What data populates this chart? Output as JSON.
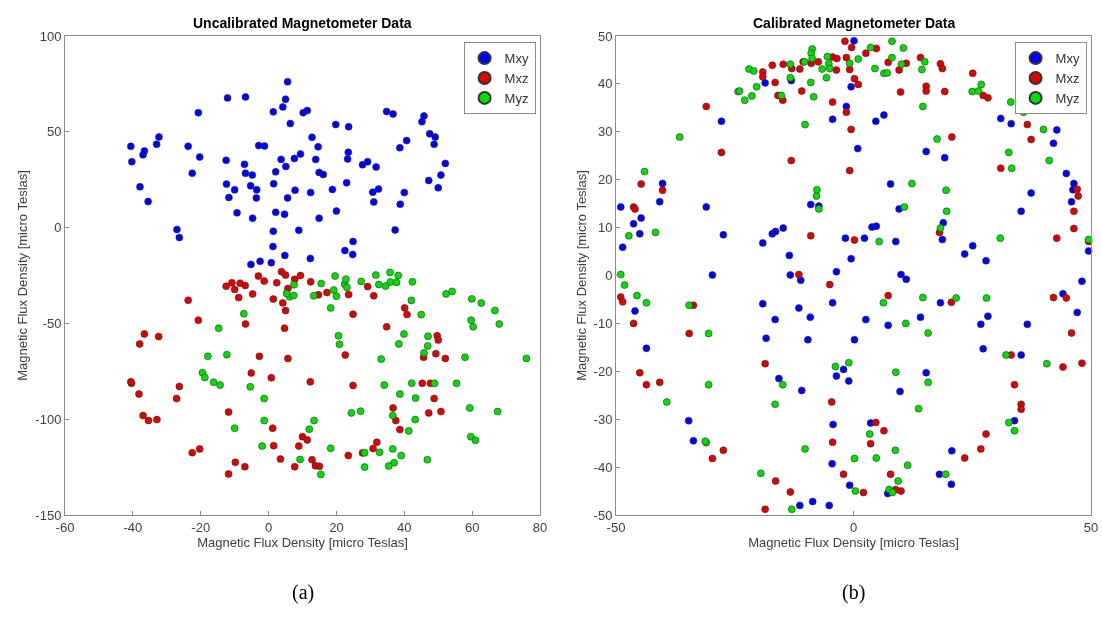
{
  "chart_data": [
    {
      "type": "scatter",
      "title": "Uncalibrated Magnetometer Data",
      "xlabel": "Magnetic Flux Density [micro Teslas]",
      "ylabel": "Magnetic Flux Density [micro Teslas]",
      "xlim": [
        -60,
        80
      ],
      "ylim": [
        -150,
        100
      ],
      "xticks": [
        -60,
        -40,
        -20,
        0,
        20,
        40,
        60,
        80
      ],
      "yticks": [
        -150,
        -100,
        -50,
        0,
        50,
        100
      ],
      "legend": "top right",
      "marker": "circle",
      "annotations": [
        "(a)"
      ],
      "series": [
        {
          "name": "Mxy",
          "color": "#0000ff",
          "x": [
            -40.6,
            -40.3,
            -37.9,
            -37,
            -36.6,
            -35.5,
            -33,
            -32.3,
            -27,
            -26.3,
            -23.7,
            -22.5,
            -20.7,
            -20.3,
            -12.1,
            -12.5,
            -12.4,
            -11.7,
            -10,
            -6.8,
            -7.1,
            -6.8,
            -9.3,
            -4.8,
            -5.3,
            -3.5,
            -3.6,
            -4.7,
            -2.9,
            -1.2,
            -5.2,
            -2.5,
            1.4,
            4.2,
            5,
            5.6,
            6.4,
            1.5,
            2.1,
            3.7,
            5.1,
            5.6,
            2.1,
            4.7,
            1.4,
            1.3,
            0.8,
            4.8,
            7.8,
            7.6,
            9.4,
            8.9,
            10.2,
            11.4,
            12.4,
            12.3,
            12.8,
            13.9,
            14.6,
            14.9,
            14.9,
            16.1,
            18.8,
            19.8,
            20,
            23,
            23.6,
            23.5,
            23.3,
            22.5,
            24.9,
            24.8,
            27.7,
            29.2,
            31.7,
            30.7,
            31,
            32.4,
            34.8,
            36.7,
            37.3,
            38.7,
            40.7,
            38.8,
            40,
            45.2,
            45.8,
            47.5,
            49.1,
            48.8,
            47.2,
            50,
            50.8,
            52.1
          ],
          "values": [
            42.4,
            34.4,
            21.3,
            38,
            40,
            13.6,
            43.5,
            47.3,
            -1,
            -5.2,
            42.4,
            28.4,
            60,
            36.8,
            67.7,
            35.1,
            22.7,
            15.7,
            19.7,
            68.2,
            33,
            28.4,
            7.7,
            27.4,
            21.8,
            19.7,
            15.5,
            4.9,
            42.8,
            42.6,
            -19.2,
            -17.6,
            60.4,
            63,
            67,
            76.1,
            54.3,
            22.9,
            29.1,
            35.6,
            31.9,
            15.5,
            8,
            7,
            -1.9,
            -9.9,
            -18.3,
            -14.5,
            19.5,
            36.1,
            38.4,
            -1.4,
            60,
            61.1,
            18.3,
            -16.1,
            47.1,
            35.6,
            42.2,
            28.8,
            4.9,
            27.7,
            19.9,
            53.8,
            8.6,
            23.4,
            52.6,
            39.3,
            35.8,
            -12,
            -7.2,
            -14,
            32.8,
            34.4,
            31.6,
            18.5,
            13.4,
            20.1,
            60.6,
            59.3,
            -1.2,
            41.7,
            45.4,
            12.2,
            18.3,
            55.3,
            58.3,
            49,
            47.3,
            43.5,
            24.6,
            20.8,
            27.4,
            33.5
          ]
        },
        {
          "name": "Mxz",
          "color": "#e00000",
          "x": [
            -40.4,
            -40.6,
            -38.2,
            -38,
            -36.6,
            -37,
            -35.4,
            -32.9,
            -32.4,
            -27.1,
            -26.3,
            -23.7,
            -22.5,
            -20.3,
            -20.7,
            -12.5,
            -10.8,
            -10,
            -8.8,
            -8.4,
            -6.8,
            -6.9,
            -4.7,
            -5.1,
            -11.8,
            -11.8,
            -9.8,
            -7,
            -3,
            -2.7,
            -1.3,
            0.8,
            1.4,
            1.2,
            1.5,
            3.5,
            2.4,
            3.8,
            5,
            4.7,
            5,
            4.2,
            5.7,
            5.7,
            7.7,
            9.4,
            7.7,
            8.9,
            10,
            11.4,
            12.4,
            12.3,
            12.8,
            13.8,
            15,
            14.7,
            17.2,
            22.6,
            23.6,
            24.9,
            24.9,
            23.5,
            27.7,
            29.2,
            31,
            30.8,
            31.9,
            34.8,
            36.7,
            37.5,
            38.7,
            40.1,
            40.8,
            45.7,
            45.3,
            47.7,
            47.2,
            48.8,
            49.3,
            49.7,
            50,
            50.8,
            52.1
          ],
          "values": [
            -81.3,
            -80.5,
            -86.9,
            -60.7,
            -55.5,
            -98.1,
            -100.7,
            -100.2,
            -56.9,
            -89.2,
            -82.9,
            -37.9,
            -117.5,
            -115.5,
            -48.3,
            -30.6,
            -28.8,
            -32.3,
            -36.5,
            -29,
            -50.3,
            -30.2,
            -34.6,
            -75.9,
            -96.3,
            -128.6,
            -122.5,
            -124.8,
            -25.3,
            -67.2,
            -27.9,
            -78.4,
            -37.3,
            -104.7,
            -113.8,
            -120.8,
            -28.8,
            -23,
            -24.8,
            -52.5,
            -43.3,
            -39.3,
            -68.3,
            -31.8,
            -27,
            -25,
            -124.8,
            -114,
            -109.1,
            -110.8,
            -28.3,
            -80.5,
            -121.1,
            -124.3,
            -124.6,
            -35.1,
            -33.9,
            -66.5,
            -34.9,
            -45.2,
            -82.4,
            -119,
            -117.6,
            -30.8,
            -35.6,
            -115.3,
            -112,
            -51.8,
            -94.1,
            -100.7,
            -105.4,
            -41.9,
            -45.4,
            -67.7,
            -81.3,
            -81.3,
            -96.7,
            -89.2,
            -65.8,
            -56.4,
            -58.6,
            -96,
            -68.3
          ]
        },
        {
          "name": "Myz",
          "color": "#00e000",
          "x": [
            -19.5,
            -18.8,
            -17.9,
            -16.2,
            -14.3,
            -14.7,
            -12.3,
            -10,
            -7.3,
            -5.4,
            -1.9,
            -1.3,
            -1.3,
            7.5,
            6.2,
            7.4,
            5.3,
            9.3,
            12,
            13.4,
            13.3,
            15.5,
            15.4,
            18.3,
            18.3,
            19.6,
            19.2,
            20,
            20.6,
            20.9,
            22.4,
            22.8,
            23.1,
            24.4,
            27.1,
            27.3,
            28.3,
            28.3,
            31.6,
            32.5,
            33.2,
            34.1,
            32.7,
            34.5,
            35.8,
            35.9,
            36.6,
            36.6,
            37,
            35.4,
            38.2,
            37.7,
            38.4,
            38.7,
            39.1,
            39.9,
            41.3,
            42.4,
            42.1,
            42.2,
            43.3,
            43.2,
            45,
            45.8,
            47,
            46.9,
            46.8,
            48.9,
            52.3,
            54.1,
            55.4,
            57.9,
            59.9,
            59.7,
            60.3,
            59.3,
            59.6,
            61,
            62.7,
            66.7,
            68,
            67.5,
            76
          ],
          "values": [
            -75.7,
            -78.2,
            -67.2,
            -80.7,
            -82.2,
            -52.5,
            -66.3,
            -104.7,
            -44.9,
            -83.1,
            -114,
            -89.2,
            -100.7,
            -29.8,
            -36.1,
            -35.4,
            -34.4,
            -121,
            -105.2,
            -100.7,
            -35.6,
            -29.2,
            -128.8,
            -41.9,
            -115.1,
            -25.3,
            -32.6,
            -35.8,
            -56.5,
            -60.9,
            -29.5,
            -26.9,
            -31.2,
            -96.7,
            -95.8,
            -28.1,
            -117.5,
            -125,
            -24.8,
            -29.7,
            -68.6,
            -82.2,
            -117.3,
            -30.5,
            -23.4,
            -28.4,
            -115.5,
            -98.1,
            -122.7,
            -124.4,
            -25,
            -28.6,
            -60.7,
            -86.9,
            -119,
            -55.5,
            -106.1,
            -28.3,
            -38,
            -81.2,
            -89,
            -100.2,
            -45.4,
            -65.4,
            -56.7,
            -61.8,
            -121.1,
            -81.3,
            -34.6,
            -33.3,
            -81.3,
            -67.7,
            -37.2,
            -48.3,
            -51.8,
            -94.1,
            -109.1,
            -111,
            -39.4,
            -43.3,
            -50.3,
            -96,
            -68.3
          ]
        }
      ]
    },
    {
      "type": "scatter",
      "title": "Calibrated Magnetometer Data",
      "xlabel": "Magnetic Flux Density [micro Teslas]",
      "ylabel": "Magnetic Flux Density [micro Teslas]",
      "xlim": [
        -50,
        50
      ],
      "ylim": [
        -50,
        50
      ],
      "xticks": [
        -50,
        0,
        50
      ],
      "yticks": [
        -50,
        -40,
        -30,
        -20,
        -10,
        0,
        10,
        20,
        30,
        40,
        50
      ],
      "legend": "top right",
      "marker": "circle",
      "annotations": [
        "(b)"
      ],
      "series": [
        {
          "name": "Mxy",
          "color": "#0000ff",
          "x": [
            -49,
            -48.6,
            -46.3,
            -44.7,
            -45,
            -46,
            -43.6,
            -40.8,
            -40.2,
            -34.7,
            -33.7,
            -31,
            -29.7,
            -27.8,
            -27.4,
            -19.1,
            -19.1,
            -18.6,
            -18.4,
            -17.1,
            -16.4,
            -16.5,
            -15.7,
            -14.8,
            -13.5,
            -13.3,
            -13.1,
            -11.5,
            -11.3,
            -11.1,
            -10.9,
            -9.6,
            -9,
            -9.1,
            -8.6,
            -7.3,
            -5.1,
            -4.4,
            -4.4,
            -4.5,
            -4.3,
            -3.6,
            -2.1,
            -3.6,
            -1.7,
            -1.5,
            -0.8,
            -1,
            -0.5,
            -0.5,
            0.1,
            0.2,
            0.9,
            2.3,
            2.6,
            3.6,
            3.9,
            4.8,
            4.7,
            6.4,
            7.3,
            7.2,
            7.8,
            8.9,
            9.6,
            9.8,
            10,
            11.1,
            14.1,
            15.3,
            15.3,
            18.3,
            18.7,
            18.9,
            19.2,
            18.1,
            20.6,
            20.7,
            23.4,
            25.1,
            26.8,
            27.3,
            27.9,
            28.3,
            31,
            33.2,
            33.9,
            35.3,
            35.3,
            36.6,
            37.4,
            42.1,
            42.8,
            44.1,
            44.8,
            45.9,
            46.4,
            46.2,
            47.1,
            48.1,
            49.5
          ],
          "values": [
            14.3,
            5.9,
            10.8,
            12,
            8.7,
            -7.4,
            -15.2,
            15.4,
            19.2,
            -30.3,
            -34.5,
            14.3,
            0.1,
            32.2,
            8.5,
            6.8,
            -5.9,
            40.2,
            -13.1,
            8.7,
            9.2,
            -9.2,
            -21.5,
            9.9,
            4.2,
            0.1,
            40.7,
            -6.8,
            -48,
            -1,
            -24,
            -13.4,
            14.8,
            -8.7,
            -47.2,
            14.5,
            -48,
            -5.7,
            32.6,
            -39.3,
            -31.1,
            0.8,
            -19.6,
            -21,
            7.8,
            35.3,
            -43.8,
            -22,
            3.5,
            39.4,
            49,
            -13.4,
            26.5,
            7.8,
            -9.2,
            -30.8,
            10.1,
            10.3,
            32.2,
            33.5,
            -10.4,
            -45.5,
            19.1,
            7.1,
            13.9,
            -24.2,
            0.2,
            -0.8,
            -8.7,
            25.9,
            -20.3,
            -5.7,
            7.5,
            11,
            24.6,
            -41.5,
            -43.6,
            -36.6,
            4.5,
            6.2,
            -10.2,
            -15.3,
            3.1,
            -8.5,
            32.8,
            31.7,
            -30.3,
            13.4,
            -16.6,
            -10.2,
            17.2,
            27.6,
            30.4,
            -3.8,
            21.3,
            15.4,
            19.2,
            17.9,
            -7.7,
            -1.2,
            5.1
          ]
        },
        {
          "name": "Mxz",
          "color": "#e00000",
          "x": [
            -49,
            -48.6,
            -46.3,
            -46,
            -46.3,
            -44.7,
            -45,
            -43.6,
            -40.8,
            -40.2,
            -34.6,
            -33.7,
            -31,
            -29.7,
            -27.8,
            -27.4,
            -19.1,
            -19.1,
            -18.6,
            -18.6,
            -17.1,
            -16.5,
            -16.4,
            -15.9,
            -14.9,
            -14.8,
            -13.3,
            -13.1,
            -13,
            -11.5,
            -11.3,
            -10.9,
            -10.6,
            -9,
            -8.9,
            -7.4,
            -5,
            -4.6,
            -4.4,
            -4.4,
            -4.4,
            -3.6,
            -3.5,
            -2.1,
            -1.8,
            -1.5,
            -1.5,
            -0.8,
            -0.8,
            -0.5,
            -0.4,
            0.2,
            0.2,
            1,
            2.1,
            2.6,
            3.6,
            4.7,
            4.8,
            6.4,
            7.3,
            7.3,
            7.8,
            8.9,
            9.6,
            9.9,
            10,
            11.1,
            14.1,
            15.3,
            15.3,
            18.1,
            18.3,
            18.7,
            19.2,
            20.6,
            20.7,
            23.4,
            25.1,
            26.8,
            27.3,
            27.9,
            28.3,
            31,
            33.2,
            33.9,
            35.3,
            35.3,
            36.6,
            37.4,
            42.1,
            42.8,
            44.1,
            44.8,
            45.9,
            46.4,
            46.4,
            47.1,
            47.3,
            48.1,
            49.5
          ],
          "values": [
            -4.5,
            -5.5,
            14.3,
            13.9,
            -10,
            19.1,
            -20.3,
            -22.8,
            -22.3,
            17.8,
            -12.1,
            -6.2,
            35.3,
            -38.2,
            25.7,
            -36.5,
            42.5,
            41.5,
            -18.4,
            -48.8,
            43.9,
            40.3,
            -42.9,
            37.6,
            36.6,
            44.1,
            -45.2,
            24,
            43.2,
            0.2,
            43.1,
            38.5,
            44.6,
            8.3,
            44.3,
            44.6,
            -1.9,
            -26.4,
            36.2,
            -34.8,
            45.6,
            42.9,
            45.3,
            -41.5,
            48.9,
            34.1,
            45.5,
            43,
            21.9,
            30.5,
            47.6,
            41.1,
            7.4,
            39.9,
            -45.3,
            46.4,
            -35.1,
            -30.7,
            47.4,
            -32.4,
            -4.2,
            44.5,
            -41.5,
            -44.7,
            42.9,
            38.3,
            -45,
            44.3,
            45.5,
            39.5,
            38.5,
            9,
            44.2,
            43.2,
            38.4,
            -5.6,
            28.9,
            -38.1,
            42.2,
            -36.2,
            37.6,
            -33.1,
            37.1,
            22.4,
            -16.6,
            -22.8,
            -26.9,
            -27.9,
            31.5,
            28.4,
            -4.6,
            7.8,
            -19.1,
            -4.7,
            -12,
            9.8,
            13.4,
            18,
            16.6,
            -18.3,
            7.1
          ]
        },
        {
          "name": "Myz",
          "color": "#00e000",
          "x": [
            -49,
            -48.2,
            -47.3,
            -45.6,
            -44,
            -43.6,
            -41.7,
            -39.3,
            -36.6,
            -34.6,
            -31,
            -31.2,
            -30.5,
            -30.5,
            -24.3,
            -24,
            -22.9,
            -22,
            -21,
            -21.4,
            -20.4,
            -19.5,
            -16.5,
            -15.2,
            -14.9,
            -13.3,
            -13.3,
            -13,
            -10.2,
            -10.2,
            -10.3,
            -9,
            -8.7,
            -8.9,
            -8.7,
            -8.4,
            -7.8,
            -7.7,
            -7.3,
            -6.6,
            -5.7,
            -5.5,
            -5.2,
            -5,
            -3.8,
            -1,
            -0.8,
            0.2,
            0.4,
            1,
            3.6,
            3.4,
            4.5,
            4.8,
            5.4,
            6.3,
            6.4,
            7.1,
            7.5,
            8.1,
            8.1,
            8.2,
            8.8,
            8.9,
            9.4,
            10.1,
            10.5,
            10.7,
            11,
            11.4,
            12.3,
            13.7,
            14.4,
            14.6,
            14.6,
            15,
            15.7,
            15.7,
            17.6,
            18.3,
            19.5,
            19.6,
            19.4,
            21.6,
            25,
            26.3,
            26.9,
            30.9,
            32.1,
            32.7,
            32.7,
            33.3,
            33.1,
            33.9,
            35.8,
            28,
            40,
            40.7,
            41.2,
            49.5
          ],
          "values": [
            0.2,
            -2,
            8.3,
            -4.2,
            21.7,
            -5.7,
            9,
            -26.4,
            28.9,
            -6.2,
            -34.9,
            -34.6,
            -12.1,
            -22.8,
            38.4,
            38.5,
            36.6,
            43.1,
            42.7,
            37.5,
            39.4,
            -41.3,
            -26.9,
            37.6,
            -22.8,
            44.1,
            41.3,
            -48.8,
            31.5,
            -36.2,
            44.6,
            40.3,
            47.3,
            46.4,
            45.3,
            37.3,
            16.6,
            17.9,
            13.9,
            43.1,
            41.3,
            45.7,
            44.2,
            43.2,
            -19,
            -18.2,
            44.3,
            -38.2,
            -45,
            45.2,
            47.6,
            -33.1,
            43.2,
            -38.1,
            7.1,
            -5.7,
            42.2,
            42.3,
            -44.7,
            48.9,
            45.5,
            -45.3,
            -36.5,
            -20.2,
            -42.9,
            44.1,
            47.5,
            14.3,
            -10,
            -39.6,
            19.2,
            -27.8,
            43,
            35.3,
            -4.6,
            44.6,
            -12,
            -22.3,
            28.5,
            9.9,
            17.8,
            13.4,
            -41.5,
            -4.7,
            38.4,
            38.5,
            39.9,
            7.8,
            -16.6,
            -30.7,
            25.7,
            22.4,
            36.2,
            -32.4,
            34.1,
            -4.7,
            30.5,
            -18.4,
            24,
            7.5
          ]
        }
      ]
    }
  ]
}
